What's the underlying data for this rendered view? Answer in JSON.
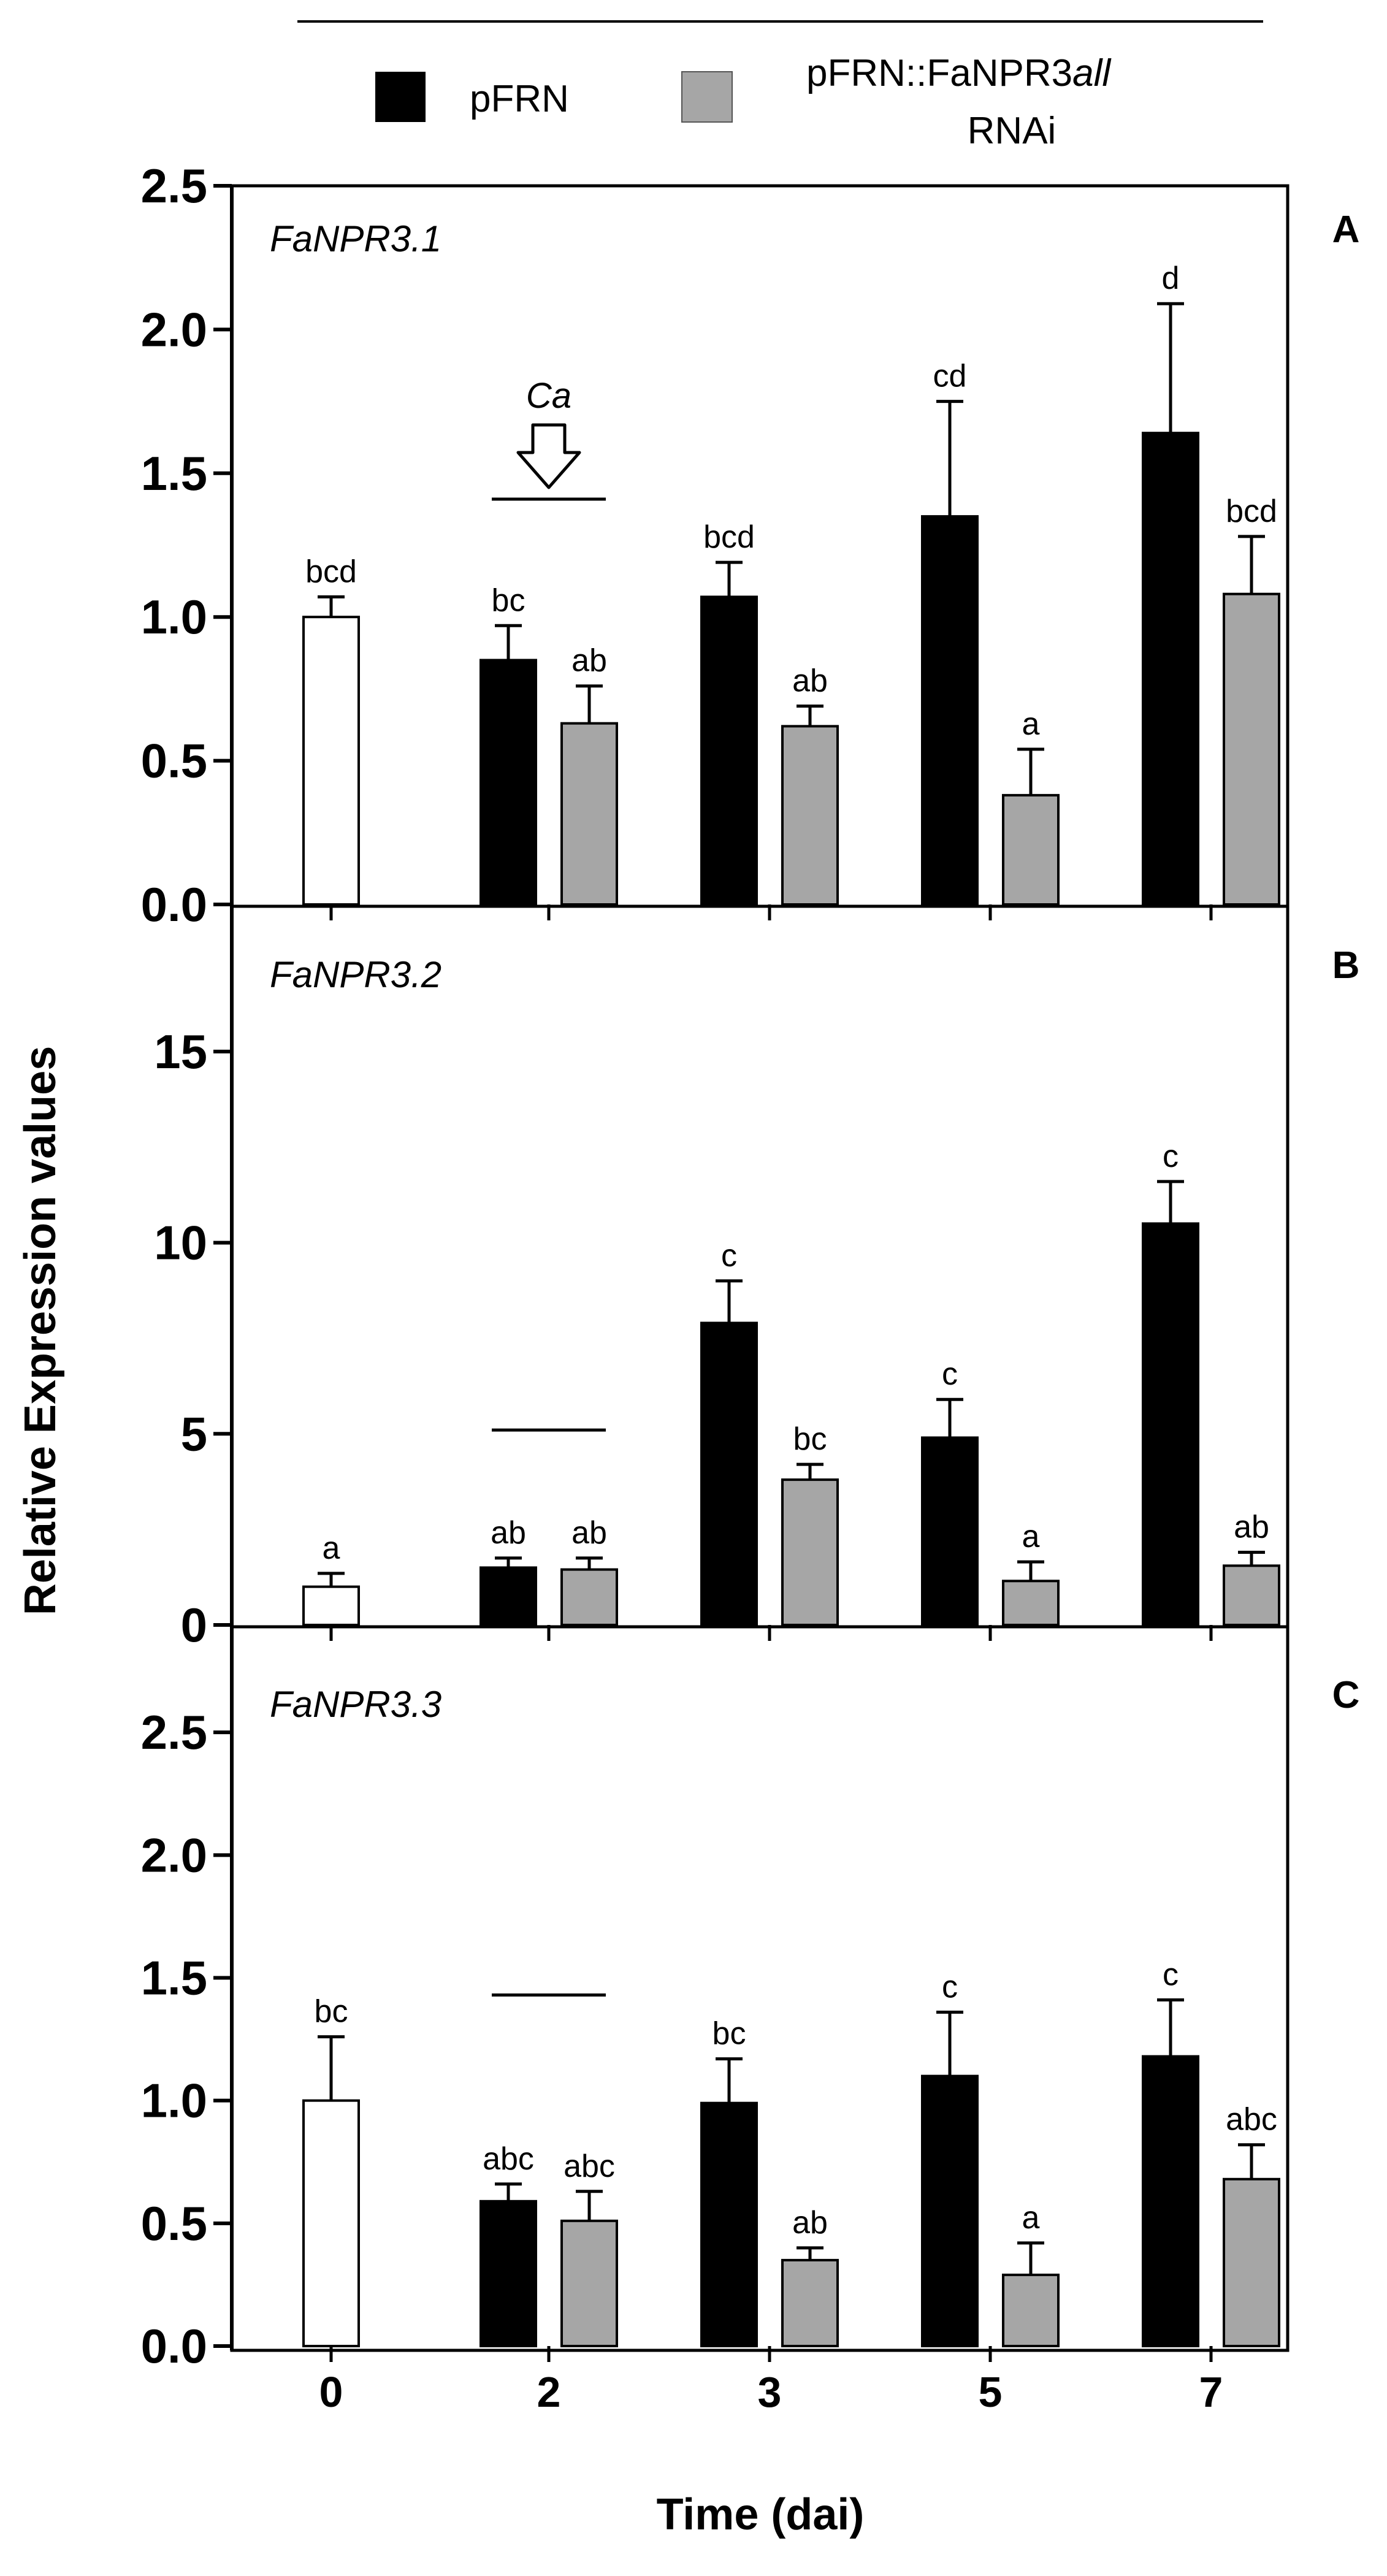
{
  "chart_data": {
    "type": "bar",
    "xlabel": "Time (dai)",
    "ylabel": "Relative Expression values",
    "categories": [
      "0",
      "2",
      "3",
      "5",
      "7"
    ],
    "legend": {
      "position": "top",
      "entries": [
        {
          "key": "pfrn",
          "name": "pFRN",
          "color": "#000000"
        },
        {
          "key": "rnai",
          "name_line1": "pFRN::FaNPR3",
          "name_italic": "all",
          "name_line2": "RNAi",
          "color": "#a6a6a6"
        }
      ]
    },
    "control": {
      "name": "0 dai control",
      "color": "#ffffff"
    },
    "annotation": {
      "text": "Ca",
      "category": "2",
      "panel": "A"
    },
    "panels": [
      {
        "letter": "A",
        "gene": "FaNPR3.1",
        "ylim": [
          0,
          2.5
        ],
        "ticks": [
          "0.0",
          "0.5",
          "1.0",
          "1.5",
          "2.0",
          "2.5"
        ],
        "tick_values": [
          0,
          0.5,
          1.0,
          1.5,
          2.0,
          2.5
        ],
        "treatment_line_value": 1.41,
        "control": {
          "value": 1.0,
          "error": 0.07,
          "label": "bcd"
        },
        "series": [
          {
            "key": "pfrn",
            "values": [
              0.85,
              1.07,
              1.35,
              1.64
            ],
            "errors": [
              0.12,
              0.12,
              0.4,
              0.45
            ],
            "labels": [
              "bc",
              "bcd",
              "cd",
              "d"
            ]
          },
          {
            "key": "rnai",
            "values": [
              0.63,
              0.62,
              0.38,
              1.08
            ],
            "errors": [
              0.13,
              0.07,
              0.16,
              0.2
            ],
            "labels": [
              "ab",
              "ab",
              "a",
              "bcd"
            ]
          }
        ]
      },
      {
        "letter": "B",
        "gene": "FaNPR3.2",
        "ylim": [
          0,
          18.8
        ],
        "ticks": [
          "0",
          "5",
          "10",
          "15"
        ],
        "tick_values": [
          0,
          5,
          10,
          15
        ],
        "treatment_line_value": 5.1,
        "control": {
          "value": 1.0,
          "error": 0.35,
          "label": "a"
        },
        "series": [
          {
            "key": "pfrn",
            "values": [
              1.5,
              7.9,
              4.9,
              10.5
            ],
            "errors": [
              0.25,
              1.1,
              1.0,
              1.1
            ],
            "labels": [
              "ab",
              "c",
              "c",
              "c"
            ]
          },
          {
            "key": "rnai",
            "values": [
              1.45,
              3.8,
              1.15,
              1.55
            ],
            "errors": [
              0.3,
              0.4,
              0.5,
              0.35
            ],
            "labels": [
              "ab",
              "bc",
              "a",
              "ab"
            ]
          }
        ]
      },
      {
        "letter": "C",
        "gene": "FaNPR3.3",
        "ylim": [
          0,
          2.93
        ],
        "ticks": [
          "0.0",
          "0.5",
          "1.0",
          "1.5",
          "2.0",
          "2.5"
        ],
        "tick_values": [
          0,
          0.5,
          1.0,
          1.5,
          2.0,
          2.5
        ],
        "treatment_line_value": 1.43,
        "control": {
          "value": 1.0,
          "error": 0.26,
          "label": "bc"
        },
        "series": [
          {
            "key": "pfrn",
            "values": [
              0.59,
              0.99,
              1.1,
              1.18
            ],
            "errors": [
              0.07,
              0.18,
              0.26,
              0.23
            ],
            "labels": [
              "abc",
              "bc",
              "c",
              "c"
            ]
          },
          {
            "key": "rnai",
            "values": [
              0.51,
              0.35,
              0.29,
              0.68
            ],
            "errors": [
              0.12,
              0.05,
              0.13,
              0.14
            ],
            "labels": [
              "abc",
              "ab",
              "a",
              "abc"
            ]
          }
        ]
      }
    ]
  }
}
